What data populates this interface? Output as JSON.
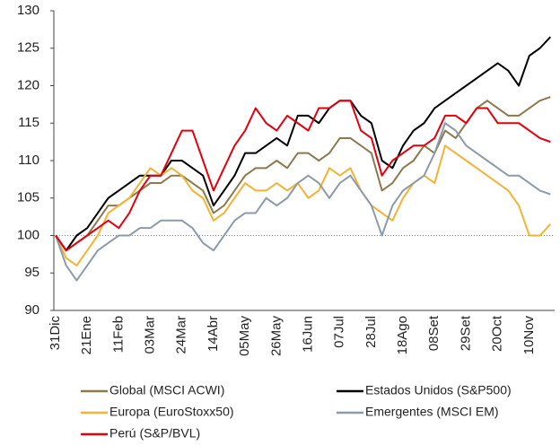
{
  "chart_data": {
    "type": "line",
    "categories": [
      "31Dic",
      null,
      null,
      "21Ene",
      null,
      null,
      "11Feb",
      null,
      null,
      "03Mar",
      null,
      null,
      "24Mar",
      null,
      null,
      "14Abr",
      null,
      null,
      "05May",
      null,
      null,
      "26May",
      null,
      null,
      "16Jun",
      null,
      null,
      "07Jul",
      null,
      null,
      "28Jul",
      null,
      null,
      "18Ago",
      null,
      null,
      "08Set",
      null,
      null,
      "29Set",
      null,
      null,
      "20Oct",
      null,
      null,
      "10Nov",
      null,
      null
    ],
    "series": [
      {
        "name": "Global (MSCI ACWI)",
        "color": "#8b7a4e",
        "values": [
          100,
          98,
          99,
          100,
          102,
          104,
          104,
          105,
          106,
          107,
          107,
          108,
          108,
          107,
          106,
          103,
          104,
          106,
          108,
          109,
          109,
          110,
          109,
          111,
          111,
          110,
          111,
          113,
          113,
          112,
          111,
          106,
          107,
          109,
          110,
          112,
          111,
          114,
          113,
          115,
          117,
          118,
          117,
          116,
          116,
          117,
          118,
          118.5
        ]
      },
      {
        "name": "Estados Unidos (S&P500)",
        "color": "#000000",
        "values": [
          100,
          98,
          100,
          101,
          103,
          105,
          106,
          107,
          108,
          108,
          108,
          110,
          110,
          109,
          108,
          104,
          106,
          108,
          111,
          111,
          112,
          113,
          112,
          116,
          116,
          115,
          117,
          118,
          118,
          116,
          115,
          110,
          109,
          112,
          114,
          115,
          117,
          118,
          119,
          120,
          121,
          122,
          123,
          122,
          120,
          124,
          125,
          126.5
        ]
      },
      {
        "name": "Europa (EuroStoxx50)",
        "color": "#f5b335",
        "values": [
          100,
          97,
          96,
          98,
          100,
          103,
          104,
          105,
          107,
          109,
          108,
          109,
          108,
          106,
          105,
          102,
          103,
          105,
          107,
          106,
          106,
          107,
          106,
          107,
          105,
          106,
          109,
          108,
          109,
          106,
          104,
          103,
          102,
          105,
          107,
          108,
          107,
          112,
          111,
          110,
          109,
          108,
          107,
          106,
          104,
          100,
          100,
          101.5
        ]
      },
      {
        "name": "Emergentes (MSCI EM)",
        "color": "#8c9ba8",
        "values": [
          100,
          96,
          94,
          96,
          98,
          99,
          100,
          100,
          101,
          101,
          102,
          102,
          102,
          101,
          99,
          98,
          100,
          102,
          103,
          103,
          105,
          104,
          105,
          107,
          108,
          107,
          105,
          107,
          108,
          106,
          104,
          100,
          104,
          106,
          107,
          108,
          111,
          115,
          114,
          112,
          111,
          110,
          109,
          108,
          108,
          107,
          106,
          105.5
        ]
      },
      {
        "name": "Perú (S&P/BVL)",
        "color": "#e3000f",
        "values": [
          100,
          98,
          99,
          100,
          101,
          102,
          101,
          103,
          106,
          108,
          108,
          111,
          114,
          114,
          110,
          106,
          109,
          112,
          114,
          117,
          115,
          114,
          116,
          115,
          114,
          117,
          117,
          118,
          118,
          114,
          113,
          108,
          110,
          111,
          112,
          112,
          113,
          116,
          116,
          115,
          117,
          117,
          115,
          115,
          115,
          114,
          113,
          112.5
        ]
      }
    ],
    "ylim": [
      90,
      130
    ],
    "yticks": [
      90,
      95,
      100,
      105,
      110,
      115,
      120,
      125,
      130
    ]
  }
}
